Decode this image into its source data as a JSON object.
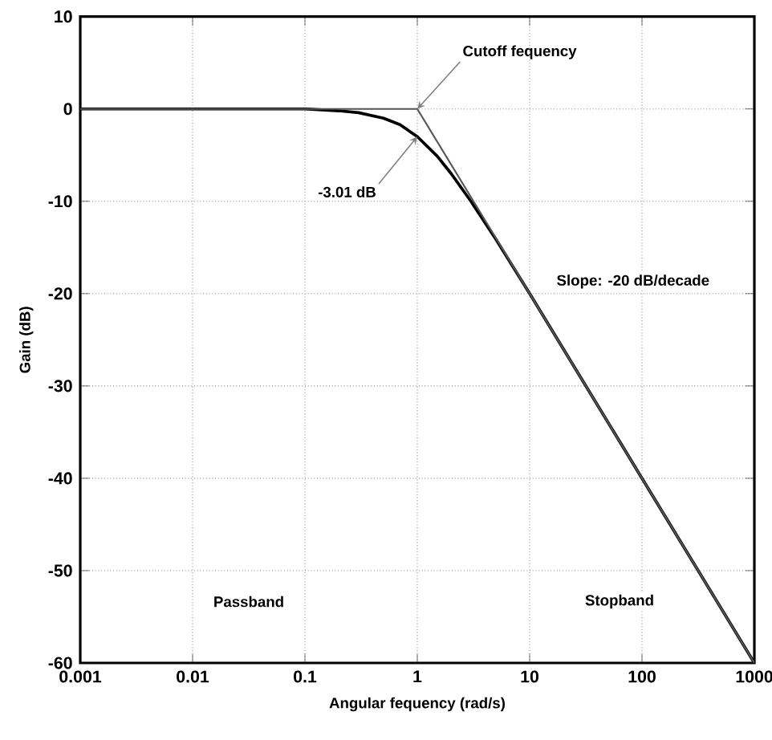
{
  "chart_data": {
    "type": "line",
    "xlabel": "Angular fequency (rad/s)",
    "ylabel": "Gain (dB)",
    "log": "x",
    "grid": true,
    "marker": "none",
    "xlim": [
      0.001,
      1000
    ],
    "xticks": [
      0.001,
      0.01,
      0.1,
      1,
      10,
      100,
      1000
    ],
    "ylim": [
      -60,
      10
    ],
    "yticks": [
      -60,
      -50,
      -40,
      -30,
      -20,
      -10,
      0,
      10
    ],
    "series": [
      {
        "color": "#000000",
        "x": [
          0.001,
          0.01,
          0.1,
          0.2,
          0.3,
          0.5,
          0.7,
          1,
          1.5,
          2,
          3,
          5,
          10,
          100,
          1000
        ],
        "values": [
          0,
          0,
          0,
          -0.2,
          -0.4,
          -1,
          -1.7,
          -3,
          -5.1,
          -7,
          -10,
          -14.1,
          -20,
          -40,
          -60
        ]
      },
      {
        "color": "#555555",
        "x": [
          0.001,
          1,
          1000
        ],
        "values": [
          0,
          0,
          -60
        ]
      }
    ],
    "annotations": [
      {
        "text": "Cutoff fequency",
        "x": 1,
        "y": 0
      },
      {
        "text": "-3.01 dB",
        "x": 1,
        "y": -3.01
      },
      "Slope: -20 dB/decade",
      "Passband",
      "Stopband"
    ]
  }
}
